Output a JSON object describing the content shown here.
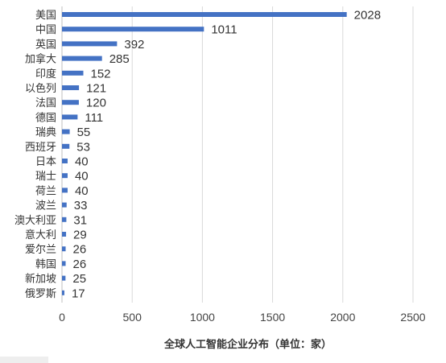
{
  "chart_data": {
    "type": "bar",
    "orientation": "horizontal",
    "categories": [
      "美国",
      "中国",
      "英国",
      "加拿大",
      "印度",
      "以色列",
      "法国",
      "德国",
      "瑞典",
      "西班牙",
      "日本",
      "瑞士",
      "荷兰",
      "波兰",
      "澳大利亚",
      "意大利",
      "爱尔兰",
      "韩国",
      "新加坡",
      "俄罗斯"
    ],
    "values": [
      2028,
      1011,
      392,
      285,
      152,
      121,
      120,
      111,
      55,
      53,
      40,
      40,
      40,
      33,
      31,
      29,
      26,
      26,
      25,
      17
    ],
    "xticks": [
      "0",
      "500",
      "1000",
      "1500",
      "2000",
      "2500"
    ],
    "xlim": [
      0,
      2500
    ],
    "title": "全球人工智能企业分布（单位：家）",
    "xlabel": "",
    "ylabel": "",
    "grid": "vertical",
    "legend": "none",
    "bar_color": "#4472c4"
  }
}
